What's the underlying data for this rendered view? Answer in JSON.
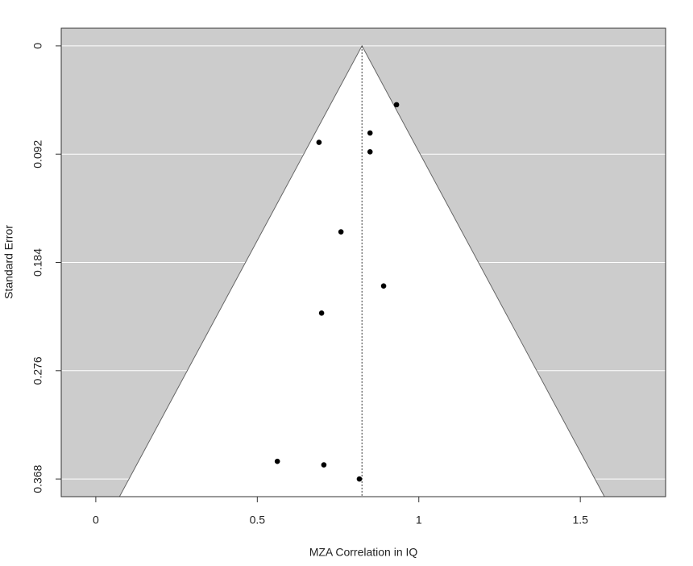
{
  "chart_data": {
    "type": "funnel",
    "x_label": "MZA Correlation in IQ",
    "y_label": "Standard Error",
    "x": [
      0.931,
      0.849,
      0.691,
      0.849,
      0.759,
      0.891,
      0.699,
      0.562,
      0.706,
      0.816
    ],
    "values": [
      0.05,
      0.074,
      0.082,
      0.09,
      0.158,
      0.204,
      0.227,
      0.353,
      0.356,
      0.368
    ],
    "estimate": 0.824,
    "funnel_z": 1.96,
    "xlim": [
      -0.107,
      1.764
    ],
    "ylim": [
      0.383,
      -0.015
    ],
    "xticks": [
      0,
      0.5,
      1,
      1.5
    ],
    "yticks": [
      0,
      0.092,
      0.184,
      0.276,
      0.368
    ],
    "grid": true,
    "background_color": "#cccccc",
    "funnel_color": "#ffffff",
    "color": "#000000"
  }
}
